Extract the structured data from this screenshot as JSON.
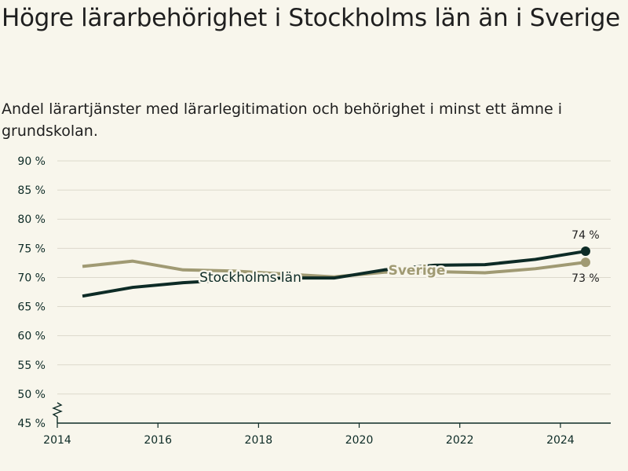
{
  "header": {
    "title": "Högre lärarbehörighet i Stockholms län än i Sverige",
    "subtitle": "Andel lärartjänster med lärarlegitimation och behörighet i minst ett ämne i grundskolan."
  },
  "chart_data": {
    "type": "line",
    "title": "Högre lärarbehörighet i Stockholms län än i Sverige",
    "subtitle": "Andel lärartjänster med lärarlegitimation och behörighet i minst ett ämne i grundskolan.",
    "xlabel": "",
    "ylabel": "",
    "x": [
      2014.5,
      2015.5,
      2016.5,
      2017.5,
      2018.5,
      2019.5,
      2020.5,
      2021.5,
      2022.5,
      2023.5,
      2024.5
    ],
    "xlim": [
      2014,
      2025
    ],
    "ylim": [
      45,
      90
    ],
    "y_broken_axis": true,
    "grid": true,
    "x_ticks": [
      {
        "value": 2014,
        "label": "2014"
      },
      {
        "value": 2016,
        "label": "2016"
      },
      {
        "value": 2018,
        "label": "2018"
      },
      {
        "value": 2020,
        "label": "2020"
      },
      {
        "value": 2022,
        "label": "2022"
      },
      {
        "value": 2024,
        "label": "2024"
      }
    ],
    "y_ticks": [
      {
        "value": 45,
        "label": "45 %"
      },
      {
        "value": 50,
        "label": "50 %"
      },
      {
        "value": 55,
        "label": "55 %"
      },
      {
        "value": 60,
        "label": "60 %"
      },
      {
        "value": 65,
        "label": "65 %"
      },
      {
        "value": 70,
        "label": "70 %"
      },
      {
        "value": 75,
        "label": "75 %"
      },
      {
        "value": 80,
        "label": "80 %"
      },
      {
        "value": 85,
        "label": "85 %"
      },
      {
        "value": 90,
        "label": "90 %"
      }
    ],
    "series": [
      {
        "name": "Sverige",
        "color": "#a09a73",
        "values": [
          71.9,
          72.8,
          71.3,
          71.1,
          70.6,
          70.1,
          70.9,
          71.0,
          70.8,
          71.5,
          72.6
        ],
        "end_label": "73 %"
      },
      {
        "name": "Stockholms län",
        "color": "#0d2b26",
        "values": [
          66.8,
          68.3,
          69.1,
          69.6,
          69.9,
          69.9,
          71.3,
          72.1,
          72.2,
          73.1,
          74.5
        ],
        "end_label": "74 %"
      }
    ]
  }
}
